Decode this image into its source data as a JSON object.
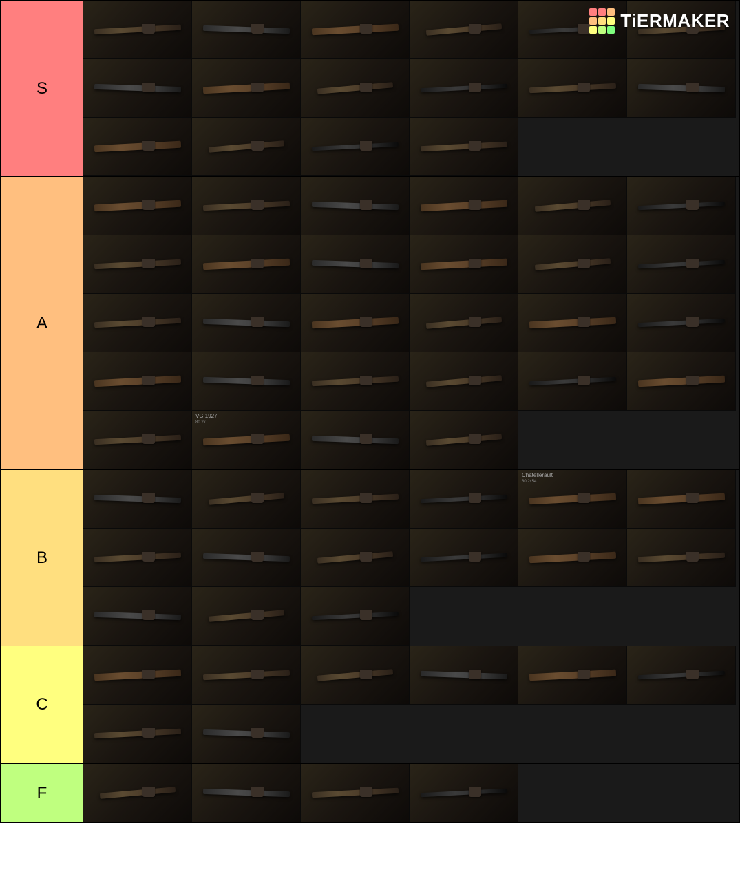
{
  "watermark": {
    "text": "TiERMAKER",
    "grid_colors": [
      "#ff7f7f",
      "#ff7f7f",
      "#ffbf7f",
      "#ffbf7f",
      "#ffdf7f",
      "#ffff7f",
      "#ffff7f",
      "#bfff7f",
      "#7fff7f"
    ]
  },
  "tiers": [
    {
      "label": "S",
      "color": "#ff7f7f",
      "items": [
        {
          "variant": 1
        },
        {
          "variant": 2
        },
        {
          "variant": 3
        },
        {
          "variant": 4
        },
        {
          "variant": 5
        },
        {
          "variant": 1
        },
        {
          "variant": 2
        },
        {
          "variant": 3
        },
        {
          "variant": 4
        },
        {
          "variant": 5
        },
        {
          "variant": 1
        },
        {
          "variant": 2
        },
        {
          "variant": 3
        },
        {
          "variant": 4
        },
        {
          "variant": 5
        },
        {
          "variant": 1
        }
      ]
    },
    {
      "label": "A",
      "color": "#ffbf7f",
      "items": [
        {
          "variant": 3
        },
        {
          "variant": 1
        },
        {
          "variant": 2
        },
        {
          "variant": 3
        },
        {
          "variant": 4
        },
        {
          "variant": 5
        },
        {
          "variant": 1
        },
        {
          "variant": 3
        },
        {
          "variant": 2
        },
        {
          "variant": 3
        },
        {
          "variant": 4
        },
        {
          "variant": 5
        },
        {
          "variant": 1
        },
        {
          "variant": 2
        },
        {
          "variant": 3
        },
        {
          "variant": 4
        },
        {
          "variant": 3
        },
        {
          "variant": 5
        },
        {
          "variant": 3
        },
        {
          "variant": 2
        },
        {
          "variant": 1
        },
        {
          "variant": 4
        },
        {
          "variant": 5
        },
        {
          "variant": 3
        },
        {
          "variant": 1
        },
        {
          "variant": 3,
          "label": "VG 1927",
          "stats": "80\n2x"
        },
        {
          "variant": 2
        },
        {
          "variant": 4
        }
      ]
    },
    {
      "label": "B",
      "color": "#ffdf7f",
      "items": [
        {
          "variant": 2
        },
        {
          "variant": 4
        },
        {
          "variant": 1
        },
        {
          "variant": 5
        },
        {
          "variant": 3,
          "label": "Chatellerault",
          "stats": "80\n2x54"
        },
        {
          "variant": 3
        },
        {
          "variant": 1
        },
        {
          "variant": 2
        },
        {
          "variant": 4
        },
        {
          "variant": 5
        },
        {
          "variant": 3
        },
        {
          "variant": 1
        },
        {
          "variant": 2
        },
        {
          "variant": 4
        },
        {
          "variant": 5
        }
      ]
    },
    {
      "label": "C",
      "color": "#ffff7f",
      "items": [
        {
          "variant": 3
        },
        {
          "variant": 1
        },
        {
          "variant": 4
        },
        {
          "variant": 2
        },
        {
          "variant": 3
        },
        {
          "variant": 5
        },
        {
          "variant": 1
        },
        {
          "variant": 2
        }
      ]
    },
    {
      "label": "F",
      "color": "#bfff7f",
      "items": [
        {
          "variant": 4
        },
        {
          "variant": 2
        },
        {
          "variant": 1
        },
        {
          "variant": 5
        }
      ]
    }
  ]
}
